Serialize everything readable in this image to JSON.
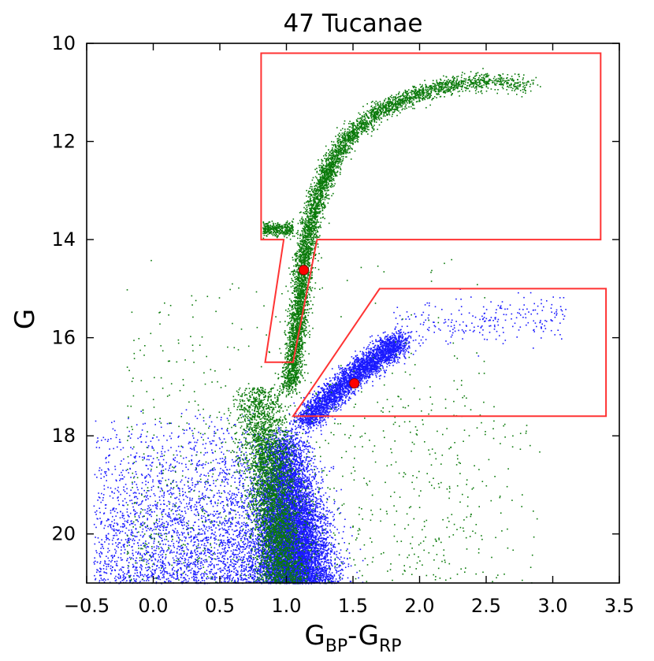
{
  "chart_data": {
    "type": "scatter",
    "title": "47 Tucanae",
    "xlabel": {
      "main": "G",
      "sub_bp": "BP",
      "dash": "-",
      "main2": "G",
      "sub_rp": "RP"
    },
    "ylabel": "G",
    "xlim": [
      -0.5,
      3.5
    ],
    "ylim": [
      21.0,
      10.0
    ],
    "y_inverted": true,
    "x_ticks": [
      -0.5,
      0.0,
      0.5,
      1.0,
      1.5,
      2.0,
      2.5,
      3.0,
      3.5
    ],
    "x_tick_labels": [
      "−0.5",
      "0.0",
      "0.5",
      "1.0",
      "1.5",
      "2.0",
      "2.5",
      "3.0",
      "3.5"
    ],
    "y_ticks": [
      10,
      12,
      14,
      16,
      18,
      20
    ],
    "y_tick_labels": [
      "10",
      "12",
      "14",
      "16",
      "18",
      "20"
    ],
    "grid": false,
    "colors": {
      "series_green": "#0a7a0a",
      "series_blue": "#1a1aff",
      "selection_box": "#ff3333",
      "marker": "#ff0000"
    },
    "series": [
      {
        "color": "#0a7a0a",
        "components": [
          {
            "kind": "giant_branch",
            "ridge": [
              [
                1.02,
                17.0
              ],
              [
                1.05,
                16.4
              ],
              [
                1.08,
                15.8
              ],
              [
                1.1,
                15.2
              ],
              [
                1.12,
                14.6
              ],
              [
                1.15,
                14.0
              ],
              [
                1.2,
                13.4
              ],
              [
                1.27,
                12.8
              ],
              [
                1.36,
                12.3
              ],
              [
                1.5,
                11.8
              ],
              [
                1.7,
                11.35
              ],
              [
                1.95,
                11.05
              ],
              [
                2.2,
                10.85
              ],
              [
                2.5,
                10.75
              ],
              [
                2.85,
                10.85
              ]
            ],
            "approx_points": 5200
          },
          {
            "kind": "horizontal_branch_clump",
            "x_range": [
              0.82,
              1.05
            ],
            "y_range": [
              13.6,
              13.9
            ],
            "approx_points": 350
          },
          {
            "kind": "turnoff_and_main_sequence",
            "x_range": [
              0.65,
              1.25
            ],
            "y_range": [
              17.0,
              21.0
            ],
            "approx_points": 3600
          },
          {
            "kind": "field_scatter",
            "x_range": [
              -0.3,
              2.5
            ],
            "y_range": [
              14.0,
              21.0
            ],
            "approx_points": 900
          }
        ]
      },
      {
        "color": "#1a1aff",
        "components": [
          {
            "kind": "smc_red_giant_branch",
            "ridge": [
              [
                1.12,
                17.7
              ],
              [
                1.25,
                17.4
              ],
              [
                1.4,
                17.0
              ],
              [
                1.55,
                16.65
              ],
              [
                1.7,
                16.35
              ],
              [
                1.85,
                16.05
              ]
            ],
            "approx_points": 3200
          },
          {
            "kind": "smc_main_sequence",
            "x_range": [
              0.7,
              1.4
            ],
            "y_range": [
              17.8,
              21.0
            ],
            "approx_points": 9500
          },
          {
            "kind": "blue_field_lower_left",
            "x_range": [
              -0.45,
              0.7
            ],
            "y_range": [
              17.5,
              21.0
            ],
            "approx_points": 2600
          },
          {
            "kind": "red_clump_tail",
            "x_range": [
              1.8,
              3.1
            ],
            "y_range": [
              15.3,
              16.3
            ],
            "approx_points": 260
          }
        ]
      }
    ],
    "markers": [
      {
        "x": 1.13,
        "y": 14.62,
        "color": "#ff0000"
      },
      {
        "x": 1.51,
        "y": 16.93,
        "color": "#ff0000"
      }
    ],
    "selection_regions": [
      {
        "name": "upper",
        "color": "#ff3333",
        "vertices": [
          [
            0.81,
            10.2
          ],
          [
            3.36,
            10.2
          ],
          [
            3.36,
            14.0
          ],
          [
            1.23,
            14.0
          ],
          [
            1.05,
            16.5
          ],
          [
            0.84,
            16.5
          ],
          [
            0.98,
            14.0
          ],
          [
            0.81,
            14.0
          ]
        ]
      },
      {
        "name": "lower",
        "color": "#ff3333",
        "vertices": [
          [
            1.7,
            15.0
          ],
          [
            3.4,
            15.0
          ],
          [
            3.4,
            17.6
          ],
          [
            1.05,
            17.6
          ],
          [
            1.45,
            16.0
          ]
        ]
      }
    ]
  }
}
